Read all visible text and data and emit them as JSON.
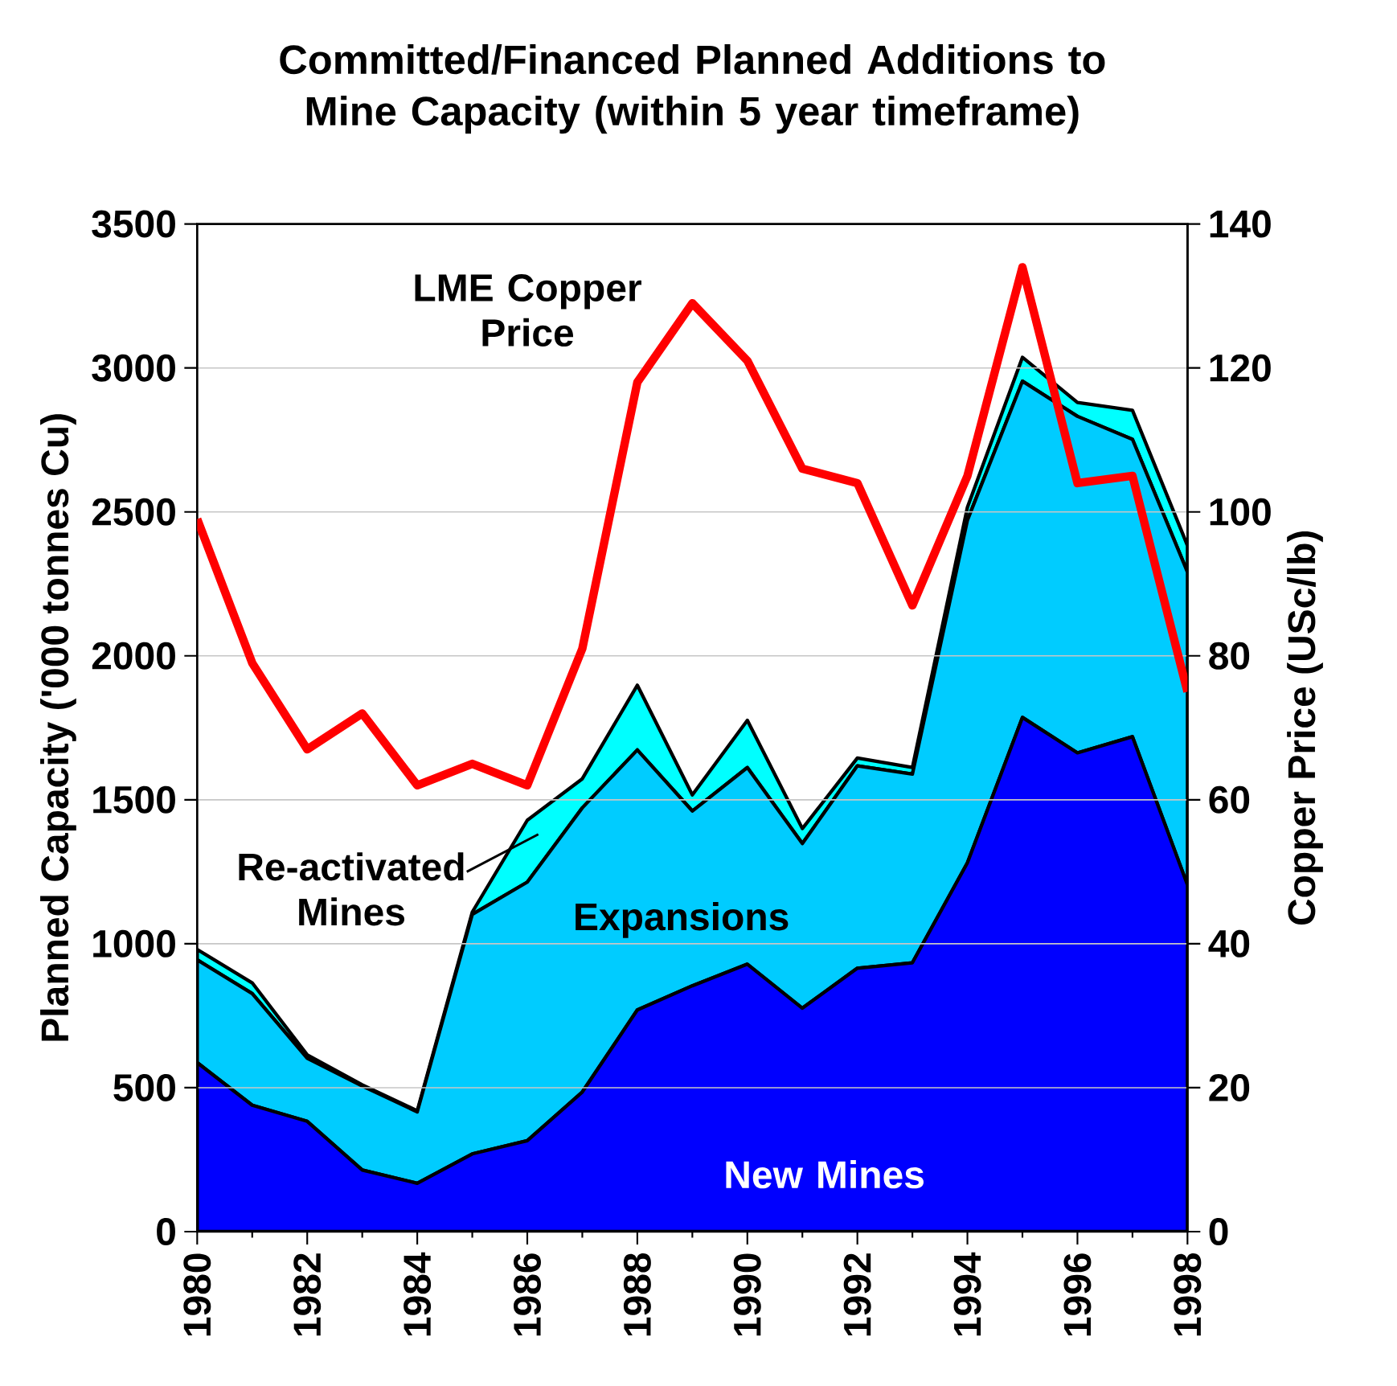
{
  "chart_data": {
    "type": "area",
    "title": "Committed/Financed Planned Additions to Mine Capacity (within 5 year timeframe)",
    "ylabel": "Planned Capacity ('000 tonnes Cu)",
    "y2label": "Copper Price (USc/lb)",
    "stacked": true,
    "grid": "y",
    "x": [
      1980,
      1981,
      1982,
      1983,
      1984,
      1985,
      1986,
      1987,
      1988,
      1989,
      1990,
      1991,
      1992,
      1993,
      1994,
      1995,
      1996,
      1997,
      1998
    ],
    "xlim": [
      1980,
      1998
    ],
    "xticks": [
      1980,
      1982,
      1984,
      1986,
      1988,
      1990,
      1992,
      1994,
      1996,
      1998
    ],
    "ylim": [
      0,
      3500
    ],
    "yticks": [
      0,
      500,
      1000,
      1500,
      2000,
      2500,
      3000,
      3500
    ],
    "y2lim": [
      0,
      140
    ],
    "y2ticks": [
      0,
      20,
      40,
      60,
      80,
      100,
      120,
      140
    ],
    "series": [
      {
        "name": "New Mines",
        "color": "#0000ff",
        "values": [
          587,
          439,
          383,
          214,
          168,
          270,
          316,
          485,
          770,
          854,
          929,
          776,
          915,
          934,
          1281,
          1786,
          1663,
          1719,
          1204
        ]
      },
      {
        "name": "Expansions",
        "color": "#00ccff",
        "values": [
          357,
          388,
          219,
          292,
          248,
          832,
          898,
          987,
          903,
          607,
          683,
          572,
          703,
          655,
          1190,
          1168,
          1169,
          1033,
          1087
        ]
      },
      {
        "name": "Re-activated Mines",
        "color": "#00ffff",
        "values": [
          36,
          37,
          12,
          4,
          4,
          8,
          215,
          101,
          225,
          56,
          164,
          52,
          27,
          23,
          45,
          83,
          48,
          101,
          92
        ]
      },
      {
        "name": "LME Copper Price",
        "type": "line",
        "axis": "y2",
        "color": "#ff0000",
        "values": [
          99,
          79,
          67,
          72,
          62,
          65,
          62,
          81,
          118,
          129,
          121,
          106,
          104,
          87,
          105,
          134,
          104,
          105,
          75
        ]
      }
    ]
  }
}
